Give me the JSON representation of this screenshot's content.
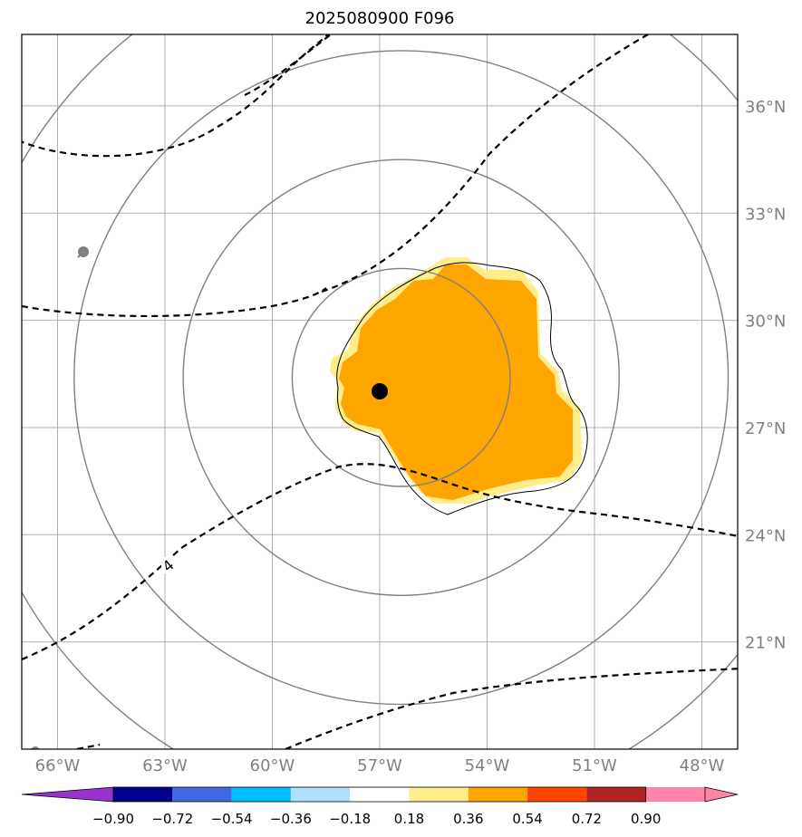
{
  "title": "2025080900 F096",
  "map": {
    "lon_range": [
      -67,
      -47
    ],
    "lat_range": [
      18,
      38
    ],
    "lon_ticks": [
      -66,
      -63,
      -60,
      -57,
      -54,
      -51,
      -48
    ],
    "lon_tick_labels": [
      "66°W",
      "63°W",
      "60°W",
      "57°W",
      "54°W",
      "51°W",
      "48°W"
    ],
    "lat_ticks": [
      21,
      24,
      27,
      30,
      33,
      36
    ],
    "lat_tick_labels": [
      "21°N",
      "24°N",
      "27°N",
      "30°N",
      "33°N",
      "36°N"
    ],
    "grid": true,
    "center_marker": {
      "lon": -56.4,
      "lat": 28.4
    },
    "range_rings_center": {
      "lon": -56.4,
      "lat": 28.4
    },
    "range_rings_deg": [
      3,
      6,
      9,
      12
    ],
    "contour_label": "4",
    "colors": {
      "grid": "#b0b0b0",
      "rings": "#808080",
      "shade_light": "#ffec8b",
      "shade_main": "#ffa500",
      "marker": "#000000"
    }
  },
  "colorbar": {
    "levels": [
      "-0.90",
      "-0.72",
      "-0.54",
      "-0.36",
      "-0.18",
      "0.18",
      "0.36",
      "0.54",
      "0.72",
      "0.90"
    ],
    "colors": [
      "#9932cc",
      "#00008b",
      "#4169e1",
      "#00bfff",
      "#b0e0ff",
      "#ffffff",
      "#ffec8b",
      "#ffa500",
      "#ff4500",
      "#b22222",
      "#ff85a8"
    ]
  }
}
